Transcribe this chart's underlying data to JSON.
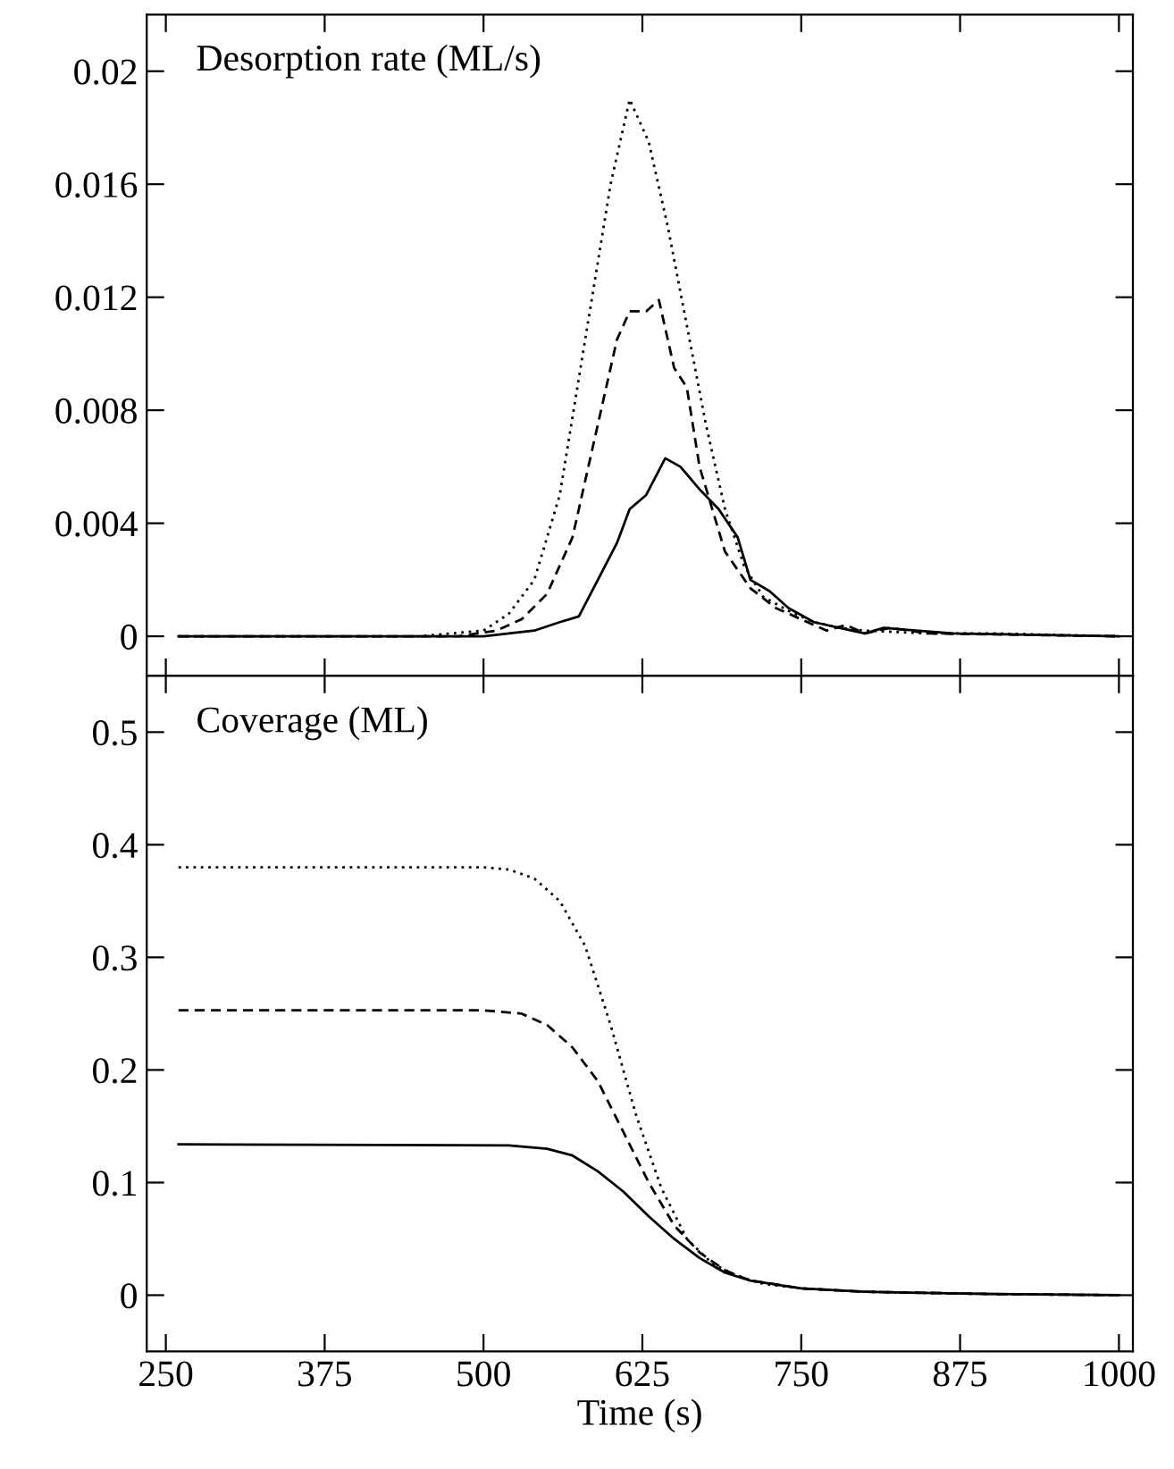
{
  "chart_data": [
    {
      "type": "line",
      "annotations": [
        "Desorption rate (ML/s)"
      ],
      "xlim": [
        235,
        1011
      ],
      "xticks": [
        250,
        375,
        500,
        625,
        750,
        875,
        1000
      ],
      "ylim": [
        -0.0014,
        0.022
      ],
      "yticks": [
        0,
        0.004,
        0.008,
        0.012,
        0.016,
        0.02
      ],
      "tick_labels": "y",
      "grid": false,
      "legend": false,
      "series": [
        {
          "color": "#000000",
          "line_style": "dotted",
          "x": [
            260,
            450,
            500,
            520,
            540,
            560,
            580,
            600,
            615,
            630,
            645,
            660,
            675,
            690,
            705,
            720,
            740,
            760,
            780,
            800,
            850,
            900,
            1000
          ],
          "values": [
            0,
            0,
            0.0002,
            0.0008,
            0.002,
            0.005,
            0.0105,
            0.016,
            0.019,
            0.0175,
            0.0145,
            0.011,
            0.0075,
            0.0045,
            0.0025,
            0.0014,
            0.0009,
            0.0005,
            0.0003,
            0.0002,
            0.0001,
            0.0001,
            0
          ]
        },
        {
          "color": "#000000",
          "line_style": "dashed",
          "x": [
            260,
            480,
            510,
            530,
            550,
            570,
            590,
            605,
            615,
            628,
            638,
            650,
            660,
            670,
            690,
            710,
            730,
            750,
            770,
            785,
            800,
            820,
            850,
            1000
          ],
          "values": [
            0,
            0,
            0.0002,
            0.0006,
            0.0015,
            0.0035,
            0.0075,
            0.0105,
            0.0115,
            0.0115,
            0.0119,
            0.0095,
            0.0088,
            0.006,
            0.003,
            0.0017,
            0.001,
            0.0006,
            0.0002,
            0.0004,
            0.0001,
            0.0003,
            0.0001,
            0
          ]
        },
        {
          "color": "#000000",
          "line_style": "solid",
          "x": [
            260,
            500,
            520,
            540,
            560,
            575,
            590,
            605,
            615,
            628,
            643,
            655,
            670,
            685,
            700,
            710,
            725,
            740,
            760,
            780,
            800,
            815,
            840,
            870,
            1000
          ],
          "values": [
            0,
            0,
            0.0001,
            0.0002,
            0.0005,
            0.0007,
            0.002,
            0.0033,
            0.0045,
            0.005,
            0.0063,
            0.006,
            0.0052,
            0.0045,
            0.0035,
            0.002,
            0.0016,
            0.001,
            0.0005,
            0.0003,
            0.0001,
            0.0003,
            0.0002,
            0.0001,
            0
          ]
        }
      ]
    },
    {
      "type": "line",
      "annotations": [
        "Coverage (ML)"
      ],
      "xlabel": "Time (s)",
      "xlim": [
        235,
        1011
      ],
      "xticks": [
        250,
        375,
        500,
        625,
        750,
        875,
        1000
      ],
      "ylim": [
        -0.05,
        0.55
      ],
      "yticks": [
        0,
        0.1,
        0.2,
        0.3,
        0.4,
        0.5
      ],
      "grid": false,
      "legend": false,
      "series": [
        {
          "color": "#000000",
          "line_style": "dotted",
          "x": [
            260,
            500,
            520,
            540,
            560,
            580,
            600,
            620,
            640,
            660,
            680,
            700,
            720,
            750,
            800,
            900,
            1000
          ],
          "values": [
            0.38,
            0.38,
            0.378,
            0.37,
            0.35,
            0.31,
            0.24,
            0.16,
            0.095,
            0.05,
            0.028,
            0.017,
            0.01,
            0.006,
            0.003,
            0.001,
            0
          ]
        },
        {
          "color": "#000000",
          "line_style": "dashed",
          "x": [
            260,
            500,
            530,
            550,
            570,
            590,
            610,
            630,
            650,
            670,
            690,
            710,
            750,
            800,
            900,
            1000
          ],
          "values": [
            0.253,
            0.253,
            0.25,
            0.24,
            0.22,
            0.19,
            0.145,
            0.1,
            0.062,
            0.038,
            0.022,
            0.013,
            0.006,
            0.003,
            0.001,
            0
          ]
        },
        {
          "color": "#000000",
          "line_style": "solid",
          "x": [
            260,
            520,
            550,
            570,
            590,
            610,
            630,
            650,
            670,
            690,
            710,
            750,
            800,
            900,
            1000
          ],
          "values": [
            0.134,
            0.133,
            0.13,
            0.124,
            0.11,
            0.092,
            0.07,
            0.05,
            0.033,
            0.02,
            0.013,
            0.006,
            0.003,
            0.001,
            0
          ]
        }
      ]
    }
  ]
}
